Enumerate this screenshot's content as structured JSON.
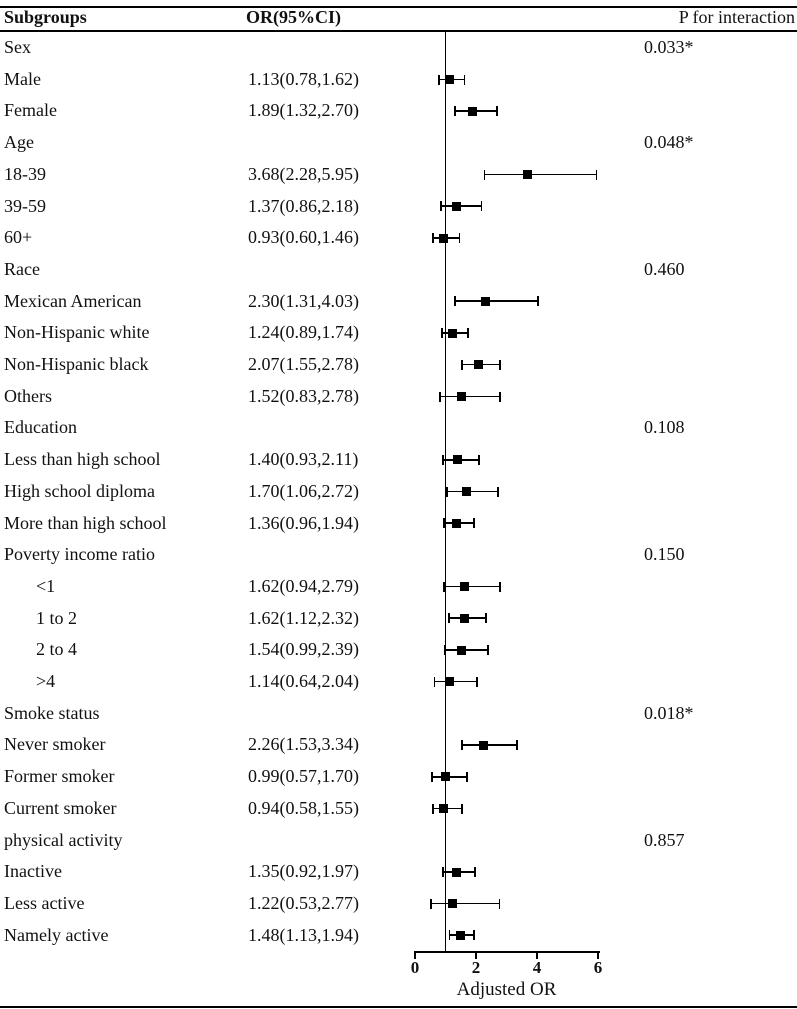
{
  "header": {
    "subgroups": "Subgroups",
    "or_ci": "OR(95%CI)",
    "p_interaction": "P for interaction"
  },
  "chart_data": {
    "type": "forest",
    "xlabel": "Adjusted OR",
    "xlim": [
      0,
      6
    ],
    "x_ticks": [
      "0",
      "2",
      "4",
      "6"
    ],
    "x_tick_values": [
      0,
      2,
      4,
      6
    ],
    "reference_line": 1,
    "marker_color": "#000000",
    "rows": [
      {
        "label": "Sex",
        "kind": "group",
        "p": "0.033*"
      },
      {
        "label": "Male",
        "kind": "item",
        "ci_text": "1.13(0.78,1.62)",
        "or": 1.13,
        "lo": 0.78,
        "hi": 1.62
      },
      {
        "label": "Female",
        "kind": "item",
        "ci_text": "1.89(1.32,2.70)",
        "or": 1.89,
        "lo": 1.32,
        "hi": 2.7
      },
      {
        "label": "Age",
        "kind": "group",
        "p": "0.048*"
      },
      {
        "label": "18-39",
        "kind": "item",
        "ci_text": "3.68(2.28,5.95)",
        "or": 3.68,
        "lo": 2.28,
        "hi": 5.95
      },
      {
        "label": "39-59",
        "kind": "item",
        "ci_text": "1.37(0.86,2.18)",
        "or": 1.37,
        "lo": 0.86,
        "hi": 2.18
      },
      {
        "label": "60+",
        "kind": "item",
        "ci_text": "0.93(0.60,1.46)",
        "or": 0.93,
        "lo": 0.6,
        "hi": 1.46
      },
      {
        "label": "Race",
        "kind": "group",
        "p": "0.460"
      },
      {
        "label": "Mexican American",
        "kind": "item",
        "ci_text": "2.30(1.31,4.03)",
        "or": 2.3,
        "lo": 1.31,
        "hi": 4.03
      },
      {
        "label": "Non-Hispanic white",
        "kind": "item",
        "ci_text": "1.24(0.89,1.74)",
        "or": 1.24,
        "lo": 0.89,
        "hi": 1.74
      },
      {
        "label": "Non-Hispanic black",
        "kind": "item",
        "ci_text": "2.07(1.55,2.78)",
        "or": 2.07,
        "lo": 1.55,
        "hi": 2.78
      },
      {
        "label": "Others",
        "kind": "item",
        "ci_text": "1.52(0.83,2.78)",
        "or": 1.52,
        "lo": 0.83,
        "hi": 2.78
      },
      {
        "label": "Education",
        "kind": "group",
        "p": "0.108"
      },
      {
        "label": "Less than high school",
        "kind": "item",
        "ci_text": "1.40(0.93,2.11)",
        "or": 1.4,
        "lo": 0.93,
        "hi": 2.11
      },
      {
        "label": "High school diploma",
        "kind": "item",
        "ci_text": "1.70(1.06,2.72)",
        "or": 1.7,
        "lo": 1.06,
        "hi": 2.72
      },
      {
        "label": "More than high school",
        "kind": "item",
        "ci_text": "1.36(0.96,1.94)",
        "or": 1.36,
        "lo": 0.96,
        "hi": 1.94
      },
      {
        "label": "Poverty income ratio",
        "kind": "group",
        "p": "0.150"
      },
      {
        "label": "<1",
        "kind": "item",
        "indent": true,
        "ci_text": "1.62(0.94,2.79)",
        "or": 1.62,
        "lo": 0.94,
        "hi": 2.79
      },
      {
        "label": "1 to 2",
        "kind": "item",
        "indent": true,
        "ci_text": "1.62(1.12,2.32)",
        "or": 1.62,
        "lo": 1.12,
        "hi": 2.32
      },
      {
        "label": "2 to 4",
        "kind": "item",
        "indent": true,
        "ci_text": "1.54(0.99,2.39)",
        "or": 1.54,
        "lo": 0.99,
        "hi": 2.39
      },
      {
        "label": ">4",
        "kind": "item",
        "indent": true,
        "ci_text": "1.14(0.64,2.04)",
        "or": 1.14,
        "lo": 0.64,
        "hi": 2.04
      },
      {
        "label": "Smoke status",
        "kind": "group",
        "p": "0.018*"
      },
      {
        "label": "Never smoker",
        "kind": "item",
        "ci_text": "2.26(1.53,3.34)",
        "or": 2.26,
        "lo": 1.53,
        "hi": 3.34
      },
      {
        "label": "Former smoker",
        "kind": "item",
        "ci_text": "0.99(0.57,1.70)",
        "or": 0.99,
        "lo": 0.57,
        "hi": 1.7
      },
      {
        "label": "Current smoker",
        "kind": "item",
        "ci_text": "0.94(0.58,1.55)",
        "or": 0.94,
        "lo": 0.58,
        "hi": 1.55
      },
      {
        "label": "physical activity",
        "kind": "group",
        "p": "0.857"
      },
      {
        "label": "Inactive",
        "kind": "item",
        "ci_text": "1.35(0.92,1.97)",
        "or": 1.35,
        "lo": 0.92,
        "hi": 1.97
      },
      {
        "label": "Less active",
        "kind": "item",
        "ci_text": "1.22(0.53,2.77)",
        "or": 1.22,
        "lo": 0.53,
        "hi": 2.77
      },
      {
        "label": "Namely active",
        "kind": "item",
        "ci_text": "1.48(1.13,1.94)",
        "or": 1.48,
        "lo": 1.13,
        "hi": 1.94
      }
    ]
  }
}
